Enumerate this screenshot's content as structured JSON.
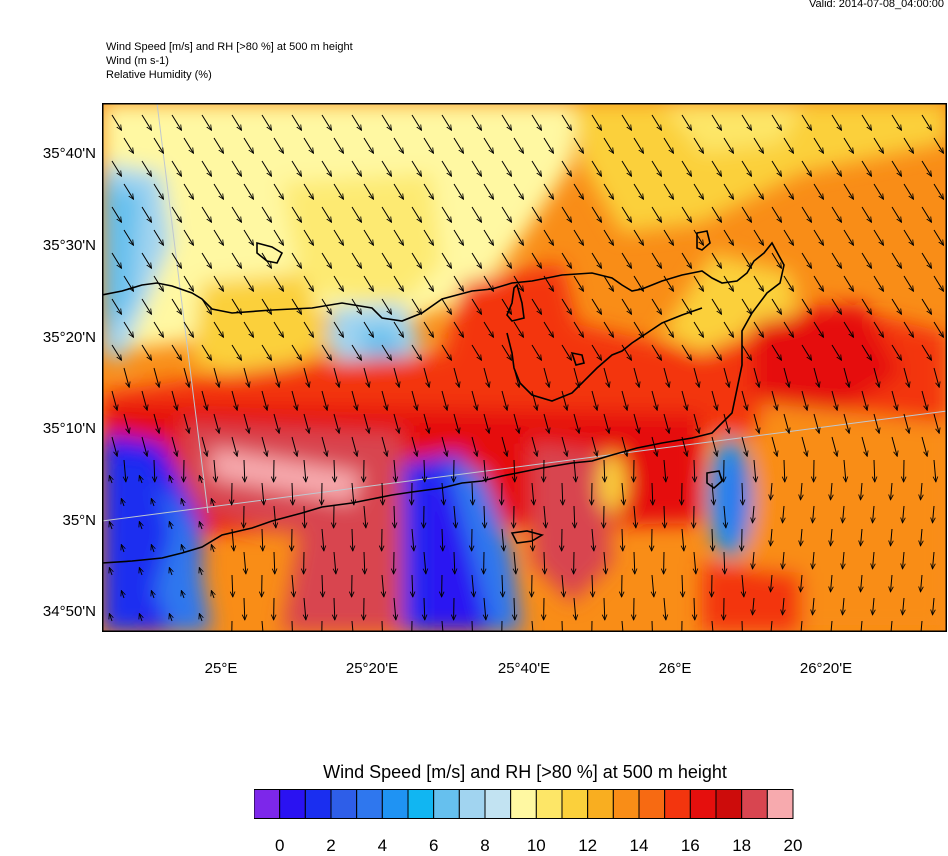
{
  "valid_label": "Valid: 2014-07-08_04:00:00",
  "header_lines": [
    "Wind Speed [m/s] and RH [>80 %] at 500 m height",
    "Wind   (m s-1)",
    "Relative Humidity   (%)"
  ],
  "lat_labels": [
    "35°40'N",
    "35°30'N",
    "35°20'N",
    "35°10'N",
    "35°N",
    "34°50'N"
  ],
  "lon_labels": [
    "25°E",
    "25°20'E",
    "25°40'E",
    "26°E",
    "26°20'E"
  ],
  "colorbar": {
    "title": "Wind Speed [m/s] and RH [>80 %] at 500 m height",
    "tick_labels": [
      "0",
      "2",
      "4",
      "6",
      "8",
      "10",
      "12",
      "14",
      "16",
      "18",
      "20"
    ],
    "colors": [
      "#7d27ea",
      "#2a12f2",
      "#1a2ef0",
      "#2e5ee8",
      "#2f77ee",
      "#1f93f3",
      "#11b6f2",
      "#66c0ee",
      "#a1d4f0",
      "#c2e3f2",
      "#fff8a2",
      "#fde667",
      "#fbd03b",
      "#f9ae20",
      "#f98d17",
      "#f76a12",
      "#f3350e",
      "#e50f0d",
      "#cd0c0b",
      "#d84550",
      "#f7aaae"
    ]
  },
  "map_colors": {
    "background": "#f98d17"
  }
}
